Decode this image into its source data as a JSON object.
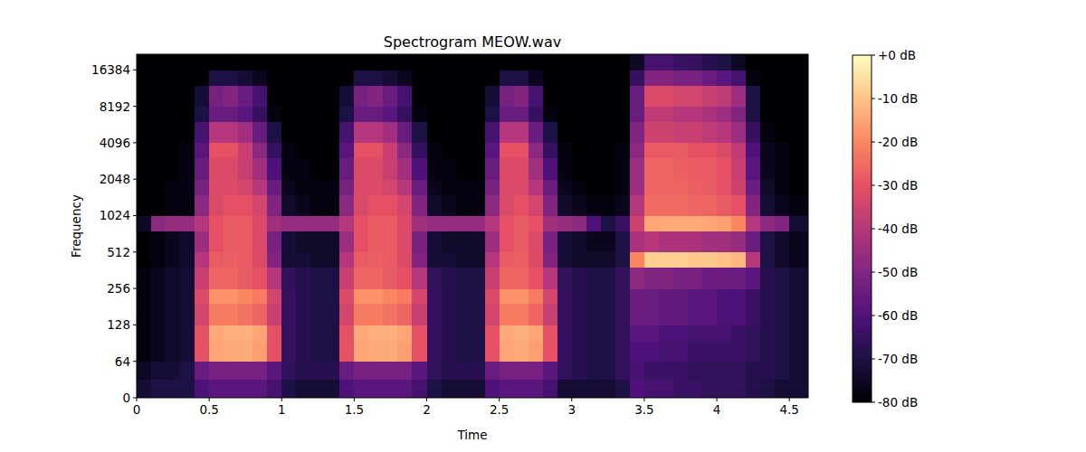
{
  "chart_data": {
    "type": "heatmap",
    "title": "Spectrogram MEOW.wav",
    "x_label": "Time",
    "y_label": "Frequency",
    "log": "y",
    "xlim": [
      0,
      4.63
    ],
    "ylim": [
      0,
      22050
    ],
    "xticks": [
      0,
      0.5,
      1,
      1.5,
      2,
      2.5,
      3,
      3.5,
      4,
      4.5
    ],
    "yticks": [
      0,
      64,
      128,
      256,
      512,
      1024,
      2048,
      4096,
      8192,
      16384
    ],
    "x_bins": [
      0,
      0.1,
      0.2,
      0.3,
      0.4,
      0.5,
      0.6,
      0.7,
      0.8,
      0.9,
      1,
      1.1,
      1.2,
      1.3,
      1.4,
      1.5,
      1.6,
      1.7,
      1.8,
      1.9,
      2,
      2.1,
      2.2,
      2.3,
      2.4,
      2.5,
      2.6,
      2.7,
      2.8,
      2.9,
      3,
      3.1,
      3.2,
      3.3,
      3.4,
      3.5,
      3.6,
      3.7,
      3.8,
      3.9,
      4,
      4.1,
      4.2,
      4.3,
      4.4,
      4.5,
      4.63
    ],
    "y_bins": [
      0,
      32,
      64,
      96,
      128,
      192,
      256,
      384,
      512,
      768,
      1024,
      1536,
      2048,
      3072,
      4096,
      6144,
      8192,
      12288,
      16384,
      22050
    ],
    "cells": [
      [
        -72,
        -70,
        -70,
        -70,
        -60,
        -58,
        -58,
        -58,
        -58,
        -62,
        -70,
        -72,
        -72,
        -72,
        -60,
        -58,
        -58,
        -58,
        -58,
        -62,
        -70,
        -72,
        -72,
        -72,
        -60,
        -58,
        -58,
        -58,
        -62,
        -72,
        -72,
        -72,
        -72,
        -70,
        -60,
        -62,
        -62,
        -64,
        -64,
        -66,
        -66,
        -66,
        -68,
        -70,
        -72,
        -72
      ],
      [
        -75,
        -72,
        -72,
        -70,
        -55,
        -52,
        -52,
        -52,
        -52,
        -58,
        -66,
        -68,
        -68,
        -68,
        -55,
        -52,
        -52,
        -52,
        -52,
        -58,
        -66,
        -68,
        -68,
        -68,
        -55,
        -52,
        -52,
        -52,
        -58,
        -66,
        -68,
        -70,
        -70,
        -66,
        -62,
        -64,
        -64,
        -64,
        -66,
        -66,
        -66,
        -66,
        -68,
        -68,
        -70,
        -72
      ],
      [
        -78,
        -76,
        -74,
        -72,
        -30,
        -15,
        -14,
        -14,
        -16,
        -30,
        -65,
        -68,
        -70,
        -70,
        -30,
        -15,
        -14,
        -14,
        -16,
        -30,
        -65,
        -68,
        -70,
        -70,
        -30,
        -15,
        -14,
        -16,
        -30,
        -65,
        -68,
        -70,
        -70,
        -66,
        -60,
        -60,
        -62,
        -62,
        -64,
        -64,
        -64,
        -64,
        -66,
        -68,
        -70,
        -72
      ],
      [
        -78,
        -76,
        -74,
        -72,
        -30,
        -14,
        -13,
        -13,
        -15,
        -30,
        -65,
        -68,
        -70,
        -70,
        -30,
        -14,
        -13,
        -13,
        -15,
        -30,
        -65,
        -68,
        -70,
        -70,
        -30,
        -14,
        -13,
        -15,
        -30,
        -65,
        -68,
        -70,
        -70,
        -66,
        -58,
        -58,
        -60,
        -60,
        -62,
        -62,
        -62,
        -64,
        -66,
        -68,
        -70,
        -72
      ],
      [
        -78,
        -76,
        -74,
        -72,
        -34,
        -22,
        -22,
        -24,
        -26,
        -36,
        -65,
        -68,
        -70,
        -70,
        -34,
        -22,
        -22,
        -24,
        -26,
        -36,
        -65,
        -68,
        -70,
        -70,
        -34,
        -22,
        -22,
        -26,
        -36,
        -65,
        -68,
        -70,
        -70,
        -66,
        -55,
        -55,
        -56,
        -56,
        -58,
        -58,
        -60,
        -60,
        -64,
        -68,
        -70,
        -72
      ],
      [
        -78,
        -76,
        -74,
        -72,
        -32,
        -18,
        -18,
        -20,
        -22,
        -34,
        -65,
        -68,
        -70,
        -70,
        -32,
        -18,
        -18,
        -20,
        -22,
        -34,
        -65,
        -68,
        -70,
        -70,
        -32,
        -18,
        -18,
        -22,
        -34,
        -65,
        -68,
        -70,
        -70,
        -66,
        -55,
        -55,
        -56,
        -56,
        -58,
        -58,
        -60,
        -60,
        -64,
        -68,
        -70,
        -72
      ],
      [
        -78,
        -76,
        -74,
        -72,
        -36,
        -26,
        -26,
        -28,
        -30,
        -40,
        -66,
        -68,
        -70,
        -70,
        -36,
        -26,
        -26,
        -28,
        -30,
        -40,
        -66,
        -68,
        -70,
        -70,
        -36,
        -26,
        -26,
        -30,
        -40,
        -66,
        -68,
        -70,
        -70,
        -66,
        -48,
        -50,
        -50,
        -52,
        -52,
        -54,
        -54,
        -55,
        -58,
        -68,
        -70,
        -72
      ],
      [
        -80,
        -78,
        -76,
        -74,
        -40,
        -28,
        -27,
        -28,
        -32,
        -50,
        -72,
        -72,
        -74,
        -74,
        -40,
        -28,
        -27,
        -28,
        -32,
        -50,
        -72,
        -72,
        -74,
        -74,
        -40,
        -28,
        -27,
        -32,
        -50,
        -72,
        -74,
        -74,
        -74,
        -70,
        -20,
        -8,
        -8,
        -8,
        -9,
        -9,
        -10,
        -12,
        -40,
        -70,
        -74,
        -76
      ],
      [
        -80,
        -78,
        -76,
        -74,
        -45,
        -30,
        -28,
        -28,
        -32,
        -52,
        -72,
        -74,
        -74,
        -74,
        -45,
        -30,
        -28,
        -28,
        -32,
        -52,
        -72,
        -74,
        -74,
        -74,
        -45,
        -30,
        -28,
        -32,
        -52,
        -72,
        -74,
        -76,
        -76,
        -70,
        -42,
        -40,
        -42,
        -42,
        -42,
        -44,
        -44,
        -46,
        -55,
        -70,
        -74,
        -76
      ],
      [
        -75,
        -48,
        -46,
        -46,
        -40,
        -30,
        -28,
        -28,
        -32,
        -44,
        -46,
        -46,
        -46,
        -46,
        -40,
        -30,
        -28,
        -28,
        -32,
        -44,
        -46,
        -46,
        -46,
        -46,
        -40,
        -30,
        -28,
        -30,
        -44,
        -46,
        -48,
        -60,
        -70,
        -64,
        -35,
        -15,
        -14,
        -14,
        -14,
        -15,
        -16,
        -20,
        -40,
        -48,
        -50,
        -72
      ],
      [
        -80,
        -80,
        -78,
        -78,
        -48,
        -32,
        -30,
        -30,
        -34,
        -50,
        -74,
        -76,
        -78,
        -78,
        -48,
        -32,
        -30,
        -30,
        -34,
        -50,
        -74,
        -76,
        -78,
        -78,
        -48,
        -32,
        -30,
        -34,
        -50,
        -74,
        -76,
        -78,
        -78,
        -76,
        -40,
        -25,
        -25,
        -25,
        -26,
        -26,
        -28,
        -30,
        -50,
        -72,
        -76,
        -78
      ],
      [
        -80,
        -80,
        -78,
        -78,
        -52,
        -32,
        -32,
        -34,
        -40,
        -55,
        -76,
        -78,
        -78,
        -78,
        -52,
        -32,
        -32,
        -34,
        -40,
        -55,
        -76,
        -78,
        -78,
        -78,
        -52,
        -32,
        -32,
        -40,
        -55,
        -76,
        -78,
        -80,
        -80,
        -78,
        -45,
        -26,
        -26,
        -26,
        -27,
        -28,
        -30,
        -35,
        -55,
        -74,
        -78,
        -80
      ],
      [
        -80,
        -80,
        -80,
        -78,
        -55,
        -32,
        -32,
        -36,
        -44,
        -60,
        -78,
        -78,
        -80,
        -80,
        -55,
        -32,
        -32,
        -36,
        -44,
        -60,
        -78,
        -78,
        -80,
        -80,
        -55,
        -32,
        -32,
        -44,
        -60,
        -78,
        -80,
        -80,
        -80,
        -78,
        -45,
        -26,
        -26,
        -27,
        -28,
        -28,
        -30,
        -36,
        -58,
        -76,
        -78,
        -80
      ],
      [
        -80,
        -80,
        -80,
        -78,
        -58,
        -30,
        -30,
        -36,
        -48,
        -65,
        -78,
        -80,
        -80,
        -80,
        -58,
        -30,
        -30,
        -36,
        -48,
        -65,
        -78,
        -80,
        -80,
        -80,
        -58,
        -30,
        -30,
        -48,
        -65,
        -78,
        -80,
        -80,
        -80,
        -78,
        -48,
        -28,
        -28,
        -28,
        -30,
        -30,
        -32,
        -38,
        -60,
        -76,
        -78,
        -80
      ],
      [
        -80,
        -80,
        -80,
        -80,
        -62,
        -40,
        -40,
        -44,
        -55,
        -70,
        -80,
        -80,
        -80,
        -80,
        -62,
        -40,
        -40,
        -44,
        -55,
        -70,
        -80,
        -80,
        -80,
        -80,
        -62,
        -40,
        -40,
        -55,
        -70,
        -80,
        -80,
        -80,
        -80,
        -80,
        -50,
        -35,
        -35,
        -36,
        -36,
        -38,
        -40,
        -45,
        -65,
        -78,
        -80,
        -80
      ],
      [
        -80,
        -80,
        -80,
        -80,
        -70,
        -55,
        -55,
        -58,
        -65,
        -78,
        -80,
        -80,
        -80,
        -80,
        -70,
        -55,
        -55,
        -58,
        -65,
        -78,
        -80,
        -80,
        -80,
        -80,
        -70,
        -55,
        -55,
        -65,
        -78,
        -80,
        -80,
        -80,
        -80,
        -80,
        -55,
        -38,
        -38,
        -40,
        -40,
        -42,
        -45,
        -50,
        -70,
        -80,
        -80,
        -80
      ],
      [
        -80,
        -80,
        -80,
        -80,
        -72,
        -52,
        -50,
        -55,
        -62,
        -80,
        -80,
        -80,
        -80,
        -80,
        -72,
        -52,
        -50,
        -55,
        -62,
        -80,
        -80,
        -80,
        -80,
        -80,
        -72,
        -52,
        -50,
        -62,
        -80,
        -80,
        -80,
        -80,
        -80,
        -80,
        -55,
        -32,
        -32,
        -34,
        -34,
        -36,
        -38,
        -45,
        -70,
        -80,
        -80,
        -80
      ],
      [
        -80,
        -80,
        -80,
        -80,
        -80,
        -70,
        -70,
        -72,
        -76,
        -80,
        -80,
        -80,
        -80,
        -80,
        -80,
        -70,
        -70,
        -72,
        -76,
        -80,
        -80,
        -80,
        -80,
        -80,
        -80,
        -70,
        -70,
        -76,
        -80,
        -80,
        -80,
        -80,
        -80,
        -80,
        -65,
        -50,
        -50,
        -52,
        -52,
        -55,
        -58,
        -62,
        -78,
        -80,
        -80,
        -80
      ],
      [
        -80,
        -80,
        -80,
        -80,
        -80,
        -80,
        -80,
        -80,
        -80,
        -80,
        -80,
        -80,
        -80,
        -80,
        -80,
        -80,
        -80,
        -80,
        -80,
        -80,
        -80,
        -80,
        -80,
        -80,
        -80,
        -80,
        -80,
        -80,
        -80,
        -80,
        -80,
        -80,
        -80,
        -80,
        -75,
        -62,
        -62,
        -64,
        -65,
        -68,
        -70,
        -75,
        -80,
        -80,
        -80,
        -80
      ]
    ],
    "colorbar": {
      "range": [
        -80,
        0
      ],
      "ticks": [
        {
          "value": 0,
          "label": "+0 dB"
        },
        {
          "value": -10,
          "label": "-10 dB"
        },
        {
          "value": -20,
          "label": "-20 dB"
        },
        {
          "value": -30,
          "label": "-30 dB"
        },
        {
          "value": -40,
          "label": "-40 dB"
        },
        {
          "value": -50,
          "label": "-50 dB"
        },
        {
          "value": -60,
          "label": "-60 dB"
        },
        {
          "value": -70,
          "label": "-70 dB"
        },
        {
          "value": -80,
          "label": "-80 dB"
        }
      ]
    }
  }
}
